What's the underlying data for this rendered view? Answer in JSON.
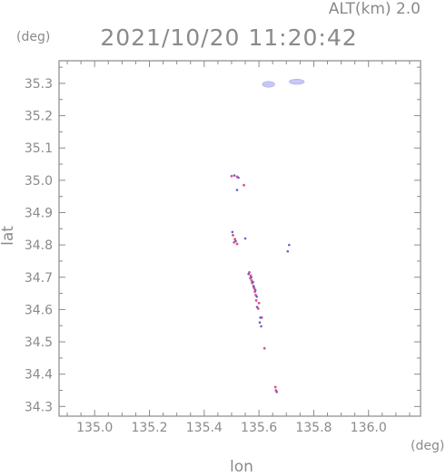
{
  "header": {
    "alt_label": "ALT(km) 2.0",
    "timestamp": "2021/10/20 11:20:42",
    "y_unit": "(deg)",
    "x_unit": "(deg)"
  },
  "colors": {
    "axis": "#8a8a8a",
    "text": "#8a8a8a",
    "cluster_fill": "#c8c8f5",
    "point_red": "#e0508a",
    "point_blue": "#6060d0"
  },
  "chart_data": {
    "type": "scatter",
    "title": "2021/10/20 11:20:42",
    "subtitle": "ALT(km) 2.0",
    "xlabel": "lon",
    "ylabel": "lat",
    "xlim": [
      134.87,
      136.19
    ],
    "ylim": [
      34.27,
      35.37
    ],
    "xticks": [
      "135.0",
      "135.2",
      "135.4",
      "135.6",
      "135.8",
      "136.0"
    ],
    "yticks": [
      "34.3",
      "34.4",
      "34.5",
      "34.6",
      "34.7",
      "34.8",
      "34.9",
      "35.0",
      "35.1",
      "35.2",
      "35.3"
    ],
    "grid": false,
    "clusters": [
      {
        "x": 135.635,
        "y": 35.297,
        "w": 0.045,
        "h": 0.018
      },
      {
        "x": 135.738,
        "y": 35.305,
        "w": 0.055,
        "h": 0.016
      }
    ],
    "points_red": [
      [
        135.5,
        35.013
      ],
      [
        135.52,
        35.011
      ],
      [
        135.545,
        34.985
      ],
      [
        135.505,
        34.83
      ],
      [
        135.512,
        34.818
      ],
      [
        135.509,
        34.808
      ],
      [
        135.52,
        34.803
      ],
      [
        135.565,
        34.715
      ],
      [
        135.57,
        34.705
      ],
      [
        135.568,
        34.697
      ],
      [
        135.573,
        34.69
      ],
      [
        135.575,
        34.682
      ],
      [
        135.58,
        34.673
      ],
      [
        135.583,
        34.665
      ],
      [
        135.585,
        34.655
      ],
      [
        135.588,
        34.645
      ],
      [
        135.59,
        34.628
      ],
      [
        135.6,
        34.62
      ],
      [
        135.597,
        34.603
      ],
      [
        135.61,
        34.575
      ],
      [
        135.62,
        34.48
      ],
      [
        135.66,
        34.36
      ],
      [
        135.662,
        34.35
      ]
    ],
    "points_blue": [
      [
        135.51,
        35.015
      ],
      [
        135.525,
        35.008
      ],
      [
        135.52,
        34.97
      ],
      [
        135.503,
        34.84
      ],
      [
        135.515,
        34.812
      ],
      [
        135.55,
        34.82
      ],
      [
        135.71,
        34.8
      ],
      [
        135.705,
        34.78
      ],
      [
        135.562,
        34.71
      ],
      [
        135.572,
        34.7
      ],
      [
        135.578,
        34.685
      ],
      [
        135.581,
        34.67
      ],
      [
        135.587,
        34.66
      ],
      [
        135.592,
        34.64
      ],
      [
        135.593,
        34.608
      ],
      [
        135.605,
        34.575
      ],
      [
        135.603,
        34.56
      ],
      [
        135.608,
        34.548
      ],
      [
        135.665,
        34.345
      ]
    ]
  }
}
